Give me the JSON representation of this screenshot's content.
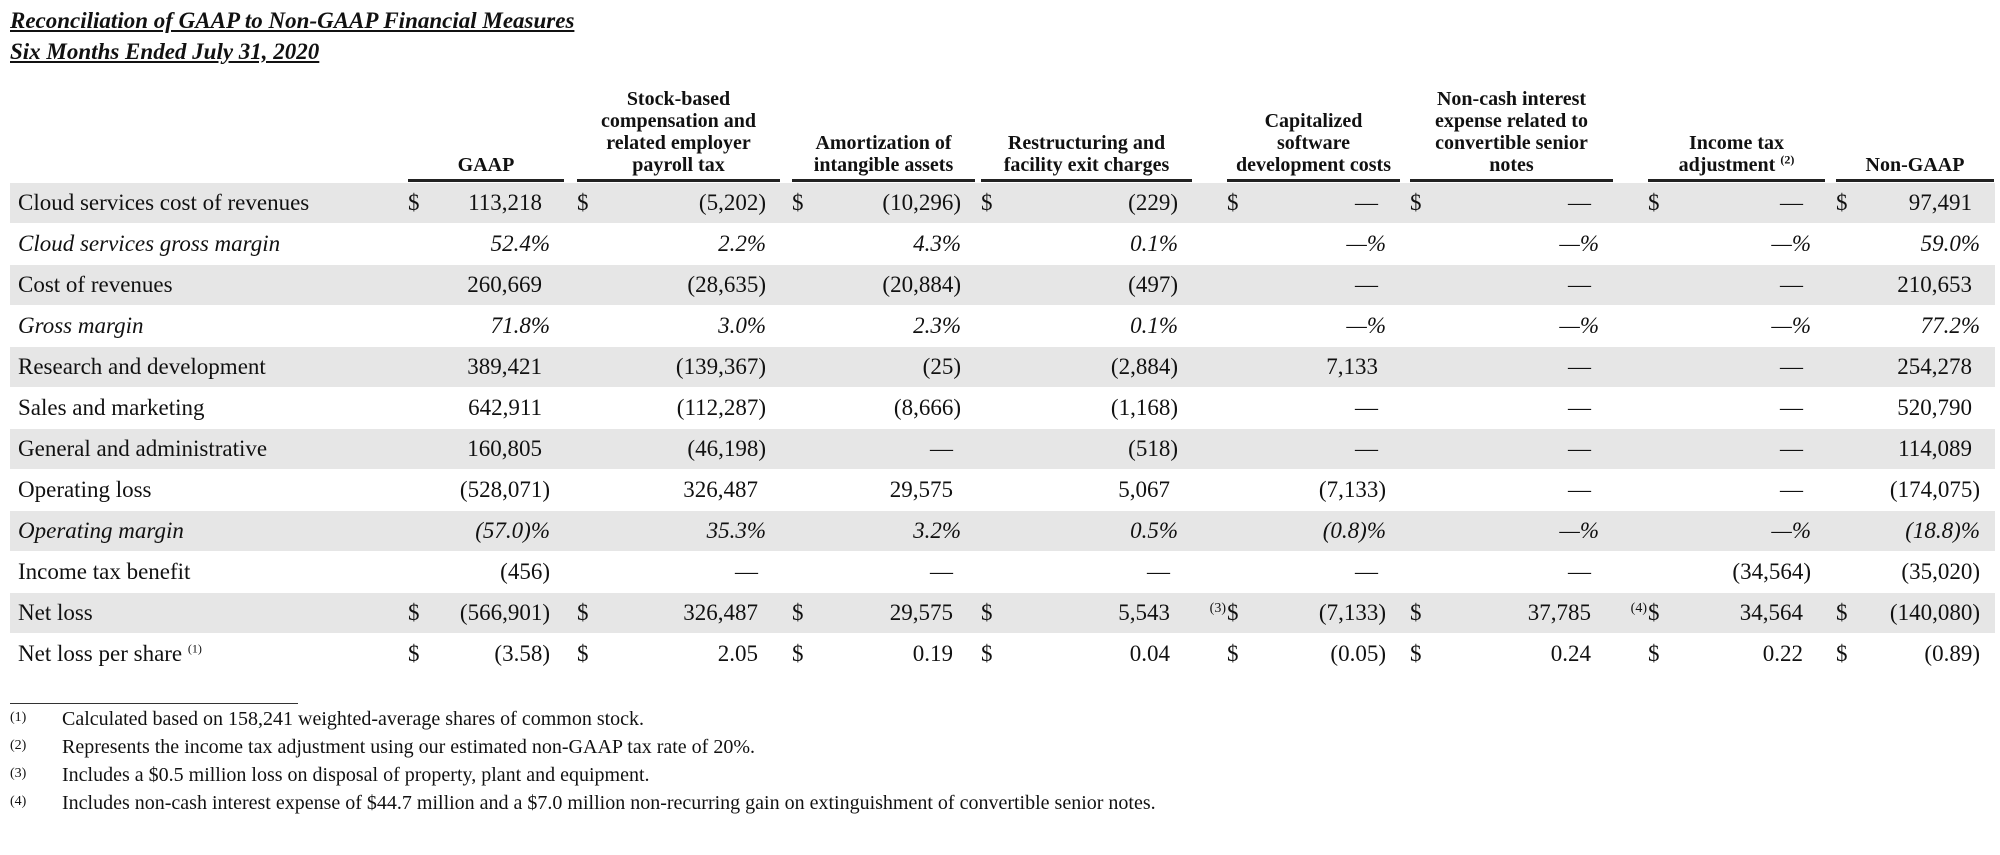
{
  "title": [
    "Reconciliation of GAAP to Non-GAAP Financial Measures",
    "Six Months Ended July 31, 2020"
  ],
  "table": {
    "columns": [
      {
        "label": "GAAP"
      },
      {
        "label": "Stock-based compensation and related employer payroll tax"
      },
      {
        "label": "Amortization of intangible assets"
      },
      {
        "label": "Restructuring and facility exit charges"
      },
      {
        "label": "Capitalized software development costs"
      },
      {
        "label": "Non-cash interest expense related to convertible senior notes"
      },
      {
        "label": "Income tax adjustment",
        "note": "(2)"
      },
      {
        "label": "Non-GAAP"
      }
    ],
    "rows": [
      {
        "label": "Cloud services cost of revenues",
        "currency": "$",
        "cells": [
          "113,218",
          "(5,202)",
          "(10,296)",
          "(229)",
          "—",
          "—",
          "—",
          "97,491"
        ]
      },
      {
        "label": "Cloud services gross margin",
        "italic": true,
        "unit": "%",
        "cells": [
          "52.4",
          "2.2",
          "4.3",
          "0.1",
          "—",
          "—",
          "—",
          "59.0"
        ]
      },
      {
        "label": "Cost of revenues",
        "cells": [
          "260,669",
          "(28,635)",
          "(20,884)",
          "(497)",
          "—",
          "—",
          "—",
          "210,653"
        ]
      },
      {
        "label": "Gross margin",
        "italic": true,
        "unit": "%",
        "cells": [
          "71.8",
          "3.0",
          "2.3",
          "0.1",
          "—",
          "—",
          "—",
          "77.2"
        ]
      },
      {
        "label": "Research and development",
        "cells": [
          "389,421",
          "(139,367)",
          "(25)",
          "(2,884)",
          "7,133",
          "—",
          "—",
          "254,278"
        ]
      },
      {
        "label": "Sales and marketing",
        "cells": [
          "642,911",
          "(112,287)",
          "(8,666)",
          "(1,168)",
          "—",
          "—",
          "—",
          "520,790"
        ]
      },
      {
        "label": "General and administrative",
        "cells": [
          "160,805",
          "(46,198)",
          "—",
          "(518)",
          "—",
          "—",
          "—",
          "114,089"
        ]
      },
      {
        "label": "Operating loss",
        "cells": [
          "(528,071)",
          "326,487",
          "29,575",
          "5,067",
          "(7,133)",
          "—",
          "—",
          "(174,075)"
        ]
      },
      {
        "label": "Operating margin",
        "italic": true,
        "unit": "%",
        "cells": [
          "(57.0)",
          "35.3",
          "3.2",
          "0.5",
          "(0.8)",
          "—",
          "—",
          "(18.8)"
        ]
      },
      {
        "label": "Income tax benefit",
        "cells": [
          "(456)",
          "—",
          "—",
          "—",
          "—",
          "—",
          "(34,564)",
          "(35,020)"
        ]
      },
      {
        "label": "Net loss",
        "currency": "$",
        "cells": [
          "(566,901)",
          "326,487",
          "29,575",
          "5,543",
          "(7,133)",
          "37,785",
          "34,564",
          "(140,080)"
        ],
        "notes": {
          "3": "(3)",
          "5": "(4)"
        }
      },
      {
        "label": "Net loss per share",
        "label_note": "(1)",
        "currency": "$",
        "cells": [
          "(3.58)",
          "2.05",
          "0.19",
          "0.04",
          "(0.05)",
          "0.24",
          "0.22",
          "(0.89)"
        ]
      }
    ]
  },
  "footnotes": [
    {
      "marker": "(1)",
      "text": "Calculated based on 158,241 weighted-average shares of common stock."
    },
    {
      "marker": "(2)",
      "text": "Represents the income tax adjustment using our estimated non-GAAP tax rate of 20%."
    },
    {
      "marker": "(3)",
      "text": "Includes a $0.5 million loss on disposal of property, plant and equipment."
    },
    {
      "marker": "(4)",
      "text": "Includes non-cash interest expense of $44.7 million and a $7.0 million non-recurring gain on extinguishment of convertible senior notes."
    }
  ]
}
